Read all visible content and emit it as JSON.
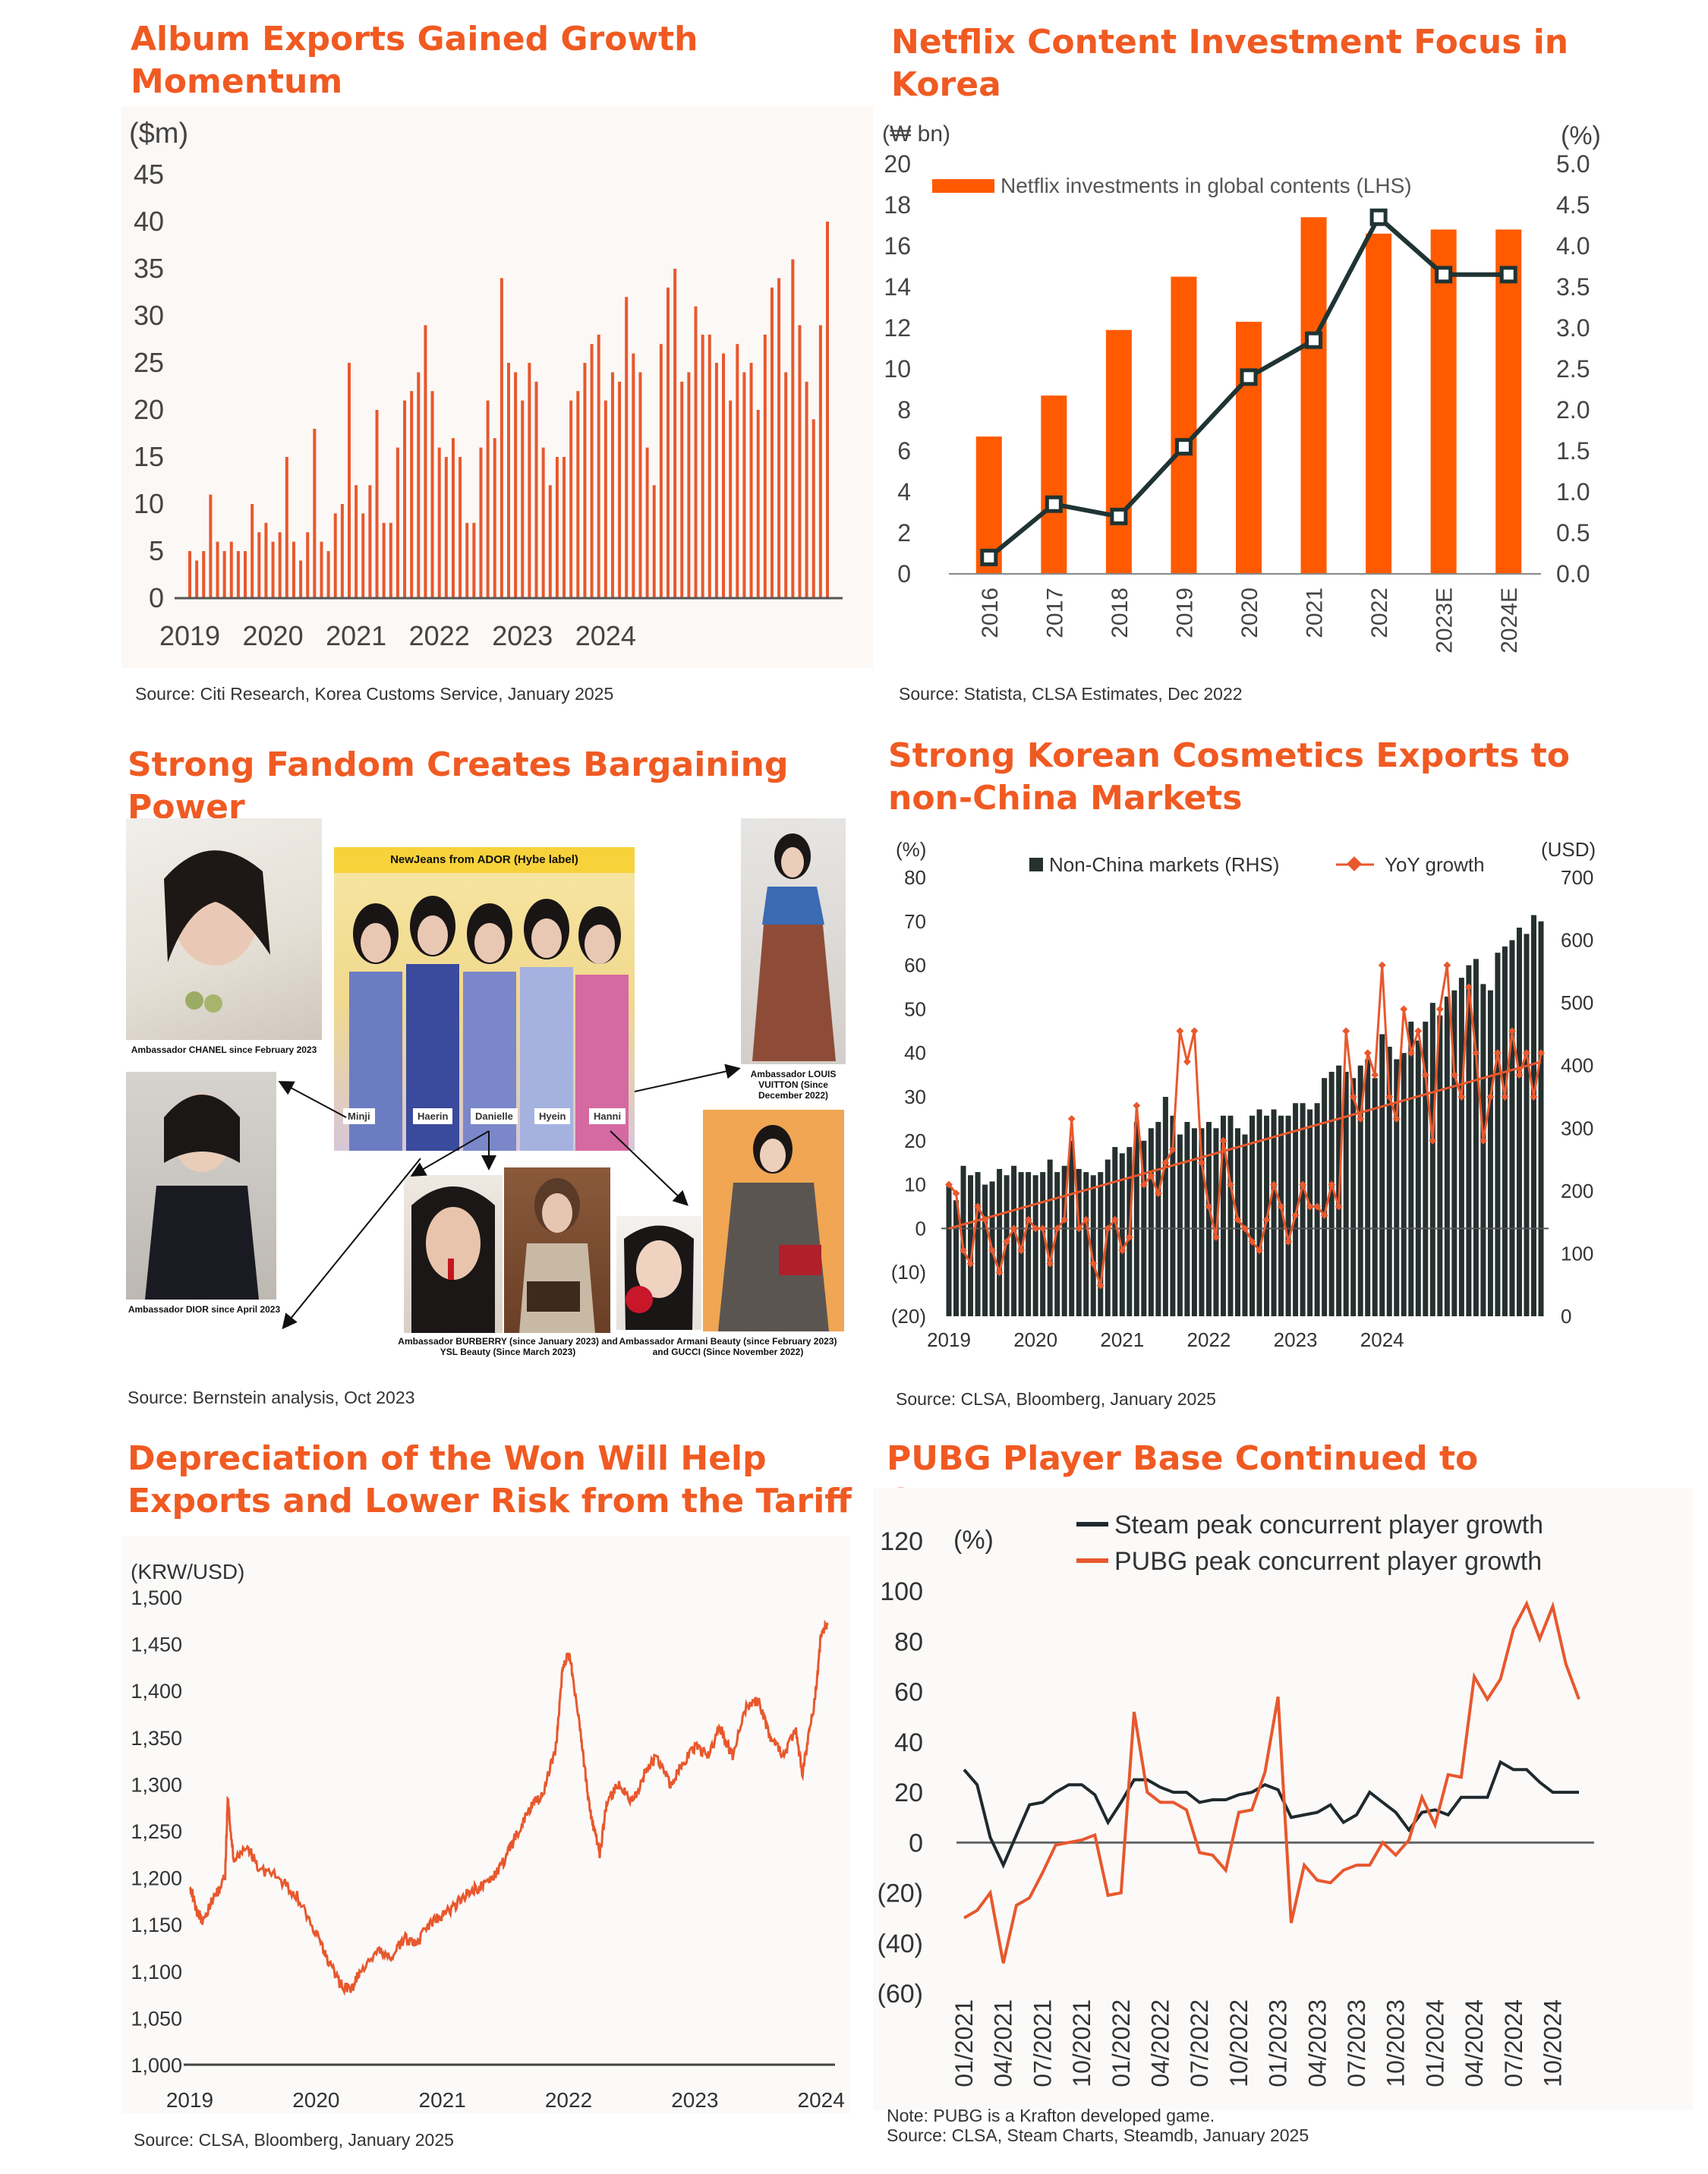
{
  "charts": {
    "album": {
      "title": "Album Exports Gained Growth Momentum",
      "source": "Source: Citi Research, Korea Customs Service, January 2025"
    },
    "netflix": {
      "title": "Netflix Content Investment Focus in Korea",
      "source": "Source: Statista, CLSA Estimates, Dec 2022"
    },
    "fandom": {
      "title": "Strong Fandom Creates Bargaining Power",
      "source": "Source: Bernstein analysis, Oct 2023",
      "group_label": "NewJeans from ADOR (Hybe label)",
      "members": [
        "Minji",
        "Haerin",
        "Danielle",
        "Hyein",
        "Hanni"
      ],
      "captions": {
        "chanel": "Ambassador CHANEL since February 2023",
        "dior": "Ambassador DIOR since April 2023",
        "burberry": "Ambassador BURBERRY (since January 2023) and YSL Beauty (Since March 2023)",
        "armani": "Ambassador Armani Beauty (since February 2023) and GUCCI (Since November 2022)",
        "lv": "Ambassador LOUIS VUITTON (Since December 2022)"
      },
      "colors": {
        "banner": "#f7d23b",
        "arrow": "#111111"
      }
    },
    "cosmetics": {
      "title": "Strong Korean Cosmetics Exports to non-China Markets",
      "source": "Source: CLSA, Bloomberg, January 2025"
    },
    "won": {
      "title": "Depreciation of the Won Will Help Exports and Lower Risk from the Tariff",
      "source": "Source: CLSA, Bloomberg, January 2025"
    },
    "pubg": {
      "title": "PUBG Player Base Continued to Outgrow",
      "note": "Note: PUBG is a Krafton developed game.",
      "source": "Source: CLSA, Steam Charts, Steamdb, January 2025"
    }
  },
  "chart_data": [
    {
      "id": "album",
      "type": "bar",
      "ylabel": "($m)",
      "ylim": [
        0,
        45
      ],
      "yticks": [
        0,
        5,
        10,
        15,
        20,
        25,
        30,
        35,
        40,
        45
      ],
      "xtick_labels": [
        "2019",
        "2020",
        "2021",
        "2022",
        "2023",
        "2024"
      ],
      "x_start": "2019-01",
      "frequency": "monthly",
      "color": "#e8582d",
      "values": [
        5,
        4,
        5,
        11,
        6,
        5,
        6,
        5,
        5,
        10,
        7,
        8,
        6,
        7,
        15,
        6,
        4,
        7,
        18,
        6,
        5,
        9,
        10,
        25,
        12,
        9,
        12,
        20,
        8,
        8,
        16,
        21,
        22,
        24,
        29,
        22,
        16,
        15,
        17,
        15,
        8,
        8,
        16,
        21,
        17,
        34,
        25,
        24,
        21,
        25,
        23,
        16,
        12,
        15,
        15,
        21,
        22,
        25,
        27,
        28,
        21,
        24,
        23,
        32,
        26,
        24,
        16,
        12,
        27,
        33,
        35,
        23,
        24,
        31,
        28,
        28,
        25,
        26,
        21,
        27,
        24,
        25,
        20,
        28,
        33,
        34,
        24,
        36,
        29,
        23,
        19,
        29,
        40
      ],
      "grid": false
    },
    {
      "id": "netflix",
      "type": "bar",
      "categories": [
        "2016",
        "2017",
        "2018",
        "2019",
        "2020",
        "2021",
        "2022",
        "2023E",
        "2024E"
      ],
      "ylabel_left": "(₩ bn)",
      "ylabel_right": "(%)",
      "ylim_left": [
        0,
        20
      ],
      "ylim_right": [
        0,
        5
      ],
      "yticks_left": [
        0,
        2,
        4,
        6,
        8,
        10,
        12,
        14,
        16,
        18,
        20
      ],
      "yticks_right": [
        "0.0",
        "0.5",
        "1.0",
        "1.5",
        "2.0",
        "2.5",
        "3.0",
        "3.5",
        "4.0",
        "4.5",
        "5.0"
      ],
      "legend": "top-left",
      "series": [
        {
          "name": "Netflix investments in global contents (LHS)",
          "kind": "bar",
          "axis": "left",
          "color": "#ff5a00",
          "values": [
            6.7,
            8.7,
            11.9,
            14.5,
            12.3,
            17.4,
            16.6,
            16.8,
            16.8
          ]
        },
        {
          "kind": "line",
          "axis": "right",
          "color": "#1f3433",
          "values": [
            0.2,
            0.85,
            0.7,
            1.55,
            2.4,
            2.85,
            4.35,
            3.65,
            3.65
          ]
        }
      ]
    },
    {
      "id": "cosmetics",
      "type": "bar",
      "ylabel_left": "(%)",
      "ylabel_right": "(USD)",
      "ylim_left": [
        -20,
        80
      ],
      "ylim_right": [
        0,
        700
      ],
      "yticks_left": [
        "(20)",
        "(10)",
        "0",
        "10",
        "20",
        "30",
        "40",
        "50",
        "60",
        "70",
        "80"
      ],
      "yticks_right": [
        "0",
        "100",
        "200",
        "300",
        "400",
        "500",
        "600",
        "700"
      ],
      "xtick_labels": [
        "2019",
        "2020",
        "2021",
        "2022",
        "2023",
        "2024"
      ],
      "x_start": "2019-01",
      "frequency": "monthly",
      "legend": "top",
      "series": [
        {
          "name": "Non-China markets (RHS)",
          "kind": "bar",
          "axis": "right",
          "color": "#25302f",
          "values": [
            210,
            185,
            240,
            225,
            230,
            210,
            215,
            235,
            225,
            240,
            230,
            230,
            225,
            230,
            250,
            230,
            240,
            280,
            235,
            230,
            225,
            230,
            250,
            270,
            260,
            270,
            310,
            280,
            300,
            310,
            350,
            320,
            290,
            310,
            300,
            300,
            310,
            300,
            320,
            320,
            300,
            290,
            320,
            330,
            320,
            330,
            320,
            320,
            340,
            340,
            330,
            340,
            380,
            390,
            400,
            390,
            380,
            400,
            410,
            380,
            450,
            430,
            410,
            420,
            470,
            440,
            470,
            500,
            480,
            510,
            520,
            540,
            560,
            570,
            530,
            520,
            580,
            590,
            600,
            620,
            610,
            640,
            630
          ]
        },
        {
          "name": "YoY growth",
          "kind": "line",
          "axis": "left",
          "color": "#e8582d",
          "values": [
            10,
            8,
            -5,
            -8,
            5,
            2,
            -5,
            -10,
            -3,
            0,
            -5,
            2,
            0,
            0,
            -8,
            0,
            2,
            25,
            0,
            2,
            -8,
            -13,
            0,
            2,
            -5,
            -2,
            28,
            10,
            12,
            8,
            15,
            18,
            45,
            38,
            45,
            15,
            5,
            -2,
            20,
            10,
            2,
            0,
            -3,
            -5,
            2,
            10,
            5,
            -3,
            3,
            10,
            5,
            5,
            3,
            10,
            5,
            45,
            30,
            25,
            40,
            35,
            60,
            30,
            25,
            50,
            40,
            45,
            35,
            20,
            50,
            60,
            35,
            30,
            55,
            40,
            20,
            30,
            40,
            30,
            45,
            35,
            40,
            30,
            40
          ]
        },
        {
          "kind": "trend",
          "axis": "left",
          "color": "#e8582d",
          "values_start_end": [
            0,
            38
          ]
        }
      ]
    },
    {
      "id": "won",
      "type": "line",
      "ylabel": "(KRW/USD)",
      "ylim": [
        1000,
        1500
      ],
      "yticks": [
        "1,000",
        "1,050",
        "1,100",
        "1,150",
        "1,200",
        "1,250",
        "1,300",
        "1,350",
        "1,400",
        "1,450",
        "1,500"
      ],
      "xtick_labels": [
        "2019",
        "2020",
        "2021",
        "2022",
        "2023",
        "2024"
      ],
      "color": "#e8582d",
      "anchor_points": [
        [
          2019.0,
          1195
        ],
        [
          2019.05,
          1165
        ],
        [
          2019.1,
          1155
        ],
        [
          2019.2,
          1180
        ],
        [
          2019.28,
          1200
        ],
        [
          2019.3,
          1285
        ],
        [
          2019.35,
          1215
        ],
        [
          2019.45,
          1235
        ],
        [
          2019.55,
          1210
        ],
        [
          2019.7,
          1200
        ],
        [
          2019.85,
          1180
        ],
        [
          2020.0,
          1140
        ],
        [
          2020.1,
          1110
        ],
        [
          2020.2,
          1085
        ],
        [
          2020.28,
          1080
        ],
        [
          2020.35,
          1100
        ],
        [
          2020.5,
          1120
        ],
        [
          2020.6,
          1115
        ],
        [
          2020.7,
          1135
        ],
        [
          2020.8,
          1130
        ],
        [
          2020.9,
          1150
        ],
        [
          2021.0,
          1160
        ],
        [
          2021.1,
          1170
        ],
        [
          2021.2,
          1185
        ],
        [
          2021.3,
          1190
        ],
        [
          2021.4,
          1200
        ],
        [
          2021.5,
          1220
        ],
        [
          2021.6,
          1250
        ],
        [
          2021.7,
          1275
        ],
        [
          2021.8,
          1290
        ],
        [
          2021.9,
          1340
        ],
        [
          2021.95,
          1420
        ],
        [
          2022.0,
          1440
        ],
        [
          2022.03,
          1420
        ],
        [
          2022.1,
          1350
        ],
        [
          2022.15,
          1290
        ],
        [
          2022.2,
          1250
        ],
        [
          2022.25,
          1225
        ],
        [
          2022.3,
          1280
        ],
        [
          2022.4,
          1300
        ],
        [
          2022.5,
          1280
        ],
        [
          2022.6,
          1310
        ],
        [
          2022.7,
          1330
        ],
        [
          2022.8,
          1300
        ],
        [
          2022.9,
          1320
        ],
        [
          2023.0,
          1340
        ],
        [
          2023.1,
          1330
        ],
        [
          2023.2,
          1360
        ],
        [
          2023.3,
          1330
        ],
        [
          2023.4,
          1380
        ],
        [
          2023.5,
          1390
        ],
        [
          2023.6,
          1350
        ],
        [
          2023.7,
          1330
        ],
        [
          2023.8,
          1360
        ],
        [
          2023.85,
          1310
        ],
        [
          2023.9,
          1350
        ],
        [
          2023.95,
          1390
        ],
        [
          2024.0,
          1460
        ],
        [
          2024.05,
          1470
        ]
      ],
      "grid": false
    },
    {
      "id": "pubg",
      "type": "line",
      "ylabel": "(%)",
      "ylim": [
        -60,
        120
      ],
      "yticks": [
        "(60)",
        "(40)",
        "(20)",
        "0",
        "20",
        "40",
        "60",
        "80",
        "100",
        "120"
      ],
      "categories": [
        "01/2021",
        "02/2021",
        "03/2021",
        "04/2021",
        "05/2021",
        "06/2021",
        "07/2021",
        "08/2021",
        "09/2021",
        "10/2021",
        "11/2021",
        "12/2021",
        "01/2022",
        "02/2022",
        "03/2022",
        "04/2022",
        "05/2022",
        "06/2022",
        "07/2022",
        "08/2022",
        "09/2022",
        "10/2022",
        "11/2022",
        "12/2022",
        "01/2023",
        "02/2023",
        "03/2023",
        "04/2023",
        "05/2023",
        "06/2023",
        "07/2023",
        "08/2023",
        "09/2023",
        "10/2023",
        "11/2023",
        "12/2023",
        "01/2024",
        "02/2024",
        "03/2024",
        "04/2024",
        "05/2024",
        "06/2024",
        "07/2024",
        "08/2024",
        "09/2024",
        "10/2024",
        "11/2024",
        "12/2024"
      ],
      "tick_labels_shown": [
        "01/2021",
        "04/2021",
        "07/2021",
        "10/2021",
        "01/2022",
        "04/2022",
        "07/2022",
        "10/2022",
        "01/2023",
        "04/2023",
        "07/2023",
        "10/2023",
        "01/2024",
        "04/2024",
        "07/2024",
        "10/2024"
      ],
      "legend": "top",
      "series": [
        {
          "name": "Steam peak concurrent player growth",
          "color": "#1f2a2e",
          "values": [
            29,
            23,
            2,
            -9,
            3,
            15,
            16,
            20,
            23,
            23,
            19,
            8,
            16,
            25,
            25,
            22,
            20,
            20,
            16,
            17,
            17,
            19,
            20,
            23,
            21,
            10,
            11,
            12,
            15,
            8,
            11,
            20,
            16,
            12,
            5,
            12,
            13,
            11,
            18,
            18,
            18,
            32,
            29,
            29,
            24,
            20,
            20,
            20
          ]
        },
        {
          "name": "PUBG peak concurrent player growth",
          "color": "#e8582d",
          "values": [
            -30,
            -27,
            -20,
            -48,
            -25,
            -22,
            -12,
            -1,
            0,
            1,
            3,
            -21,
            -20,
            52,
            20,
            16,
            16,
            13,
            -4,
            -5,
            -11,
            12,
            13,
            28,
            58,
            -32,
            -9,
            -15,
            -16,
            -11,
            -9,
            -9,
            0,
            -5,
            1,
            18,
            7,
            27,
            26,
            66,
            57,
            65,
            85,
            95,
            81,
            94,
            71,
            57
          ]
        }
      ]
    }
  ]
}
